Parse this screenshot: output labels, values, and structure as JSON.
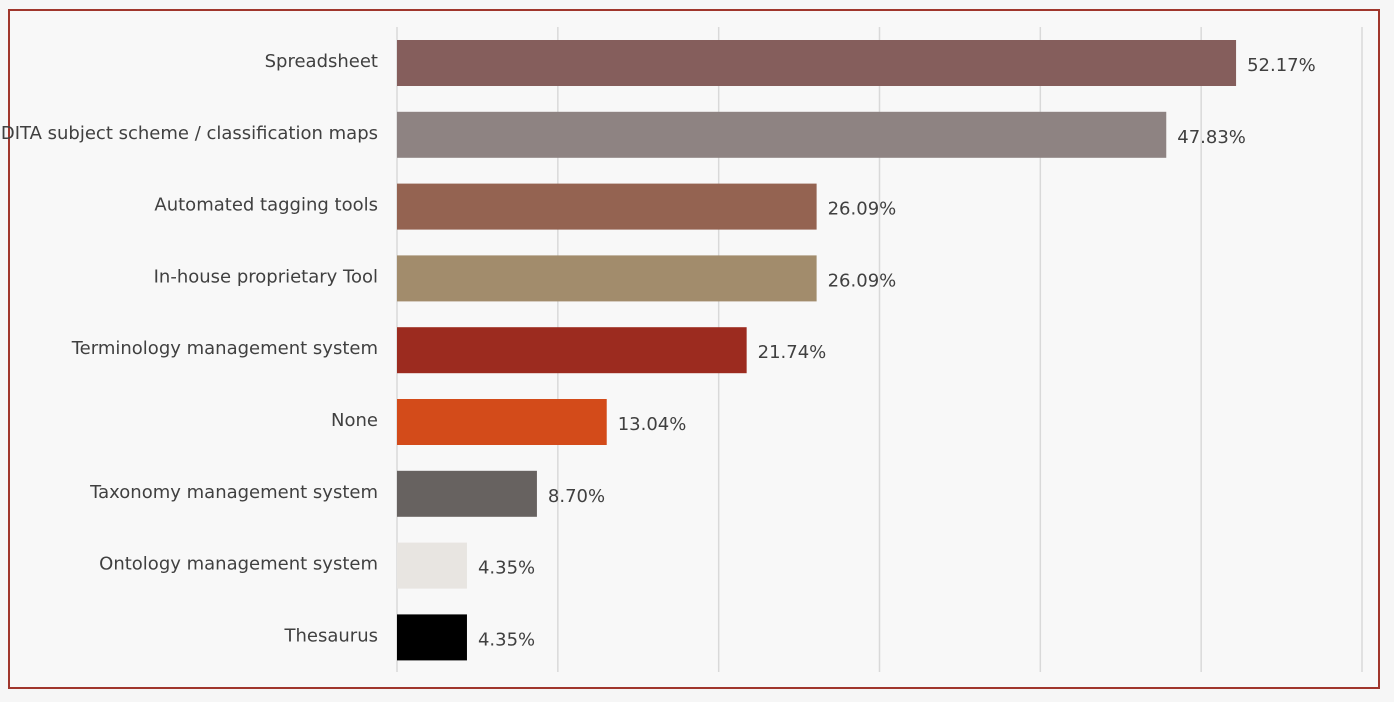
{
  "chart_data": {
    "type": "bar",
    "orientation": "horizontal",
    "categories": [
      "Spreadsheet",
      "DITA subject scheme / classification maps",
      "Automated tagging tools",
      "In-house proprietary Tool",
      "Terminology management system",
      "None",
      "Taxonomy management system",
      "Ontology management system",
      "Thesaurus"
    ],
    "values": [
      52.17,
      47.83,
      26.09,
      26.09,
      21.74,
      13.04,
      8.7,
      4.35,
      4.35
    ],
    "value_labels": [
      "52.17%",
      "47.83%",
      "26.09%",
      "26.09%",
      "21.74%",
      "13.04%",
      "8.70%",
      "4.35%",
      "4.35%"
    ],
    "colors": [
      "#855e5c",
      "#8e8382",
      "#946351",
      "#a28c6c",
      "#9c2b1f",
      "#d34b1a",
      "#676260",
      "#e8e5e1",
      "#000000"
    ],
    "xlim": [
      0,
      60
    ],
    "x_gridlines": [
      0,
      10,
      20,
      30,
      40,
      50,
      60
    ],
    "grid": true,
    "legend": "none",
    "title": "",
    "xlabel": "",
    "ylabel": "",
    "frame_color": "#a0362c",
    "gridline_color": "#d9d9d9"
  }
}
